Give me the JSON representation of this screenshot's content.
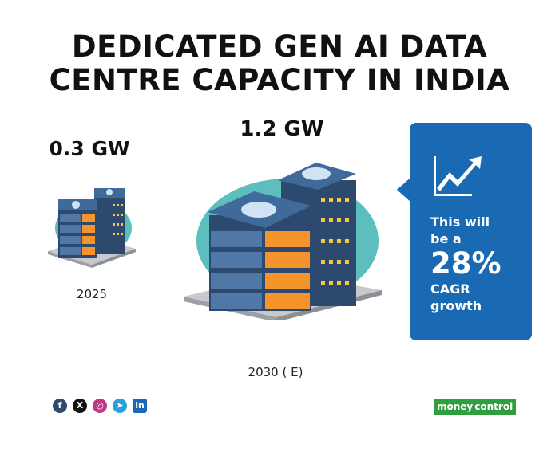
{
  "title": {
    "line1": "DEDICATED GEN AI DATA",
    "line2": "CENTRE CAPACITY IN INDIA"
  },
  "left": {
    "value": "0.3 GW",
    "year": "2025",
    "icon": "server-rack-icon"
  },
  "right": {
    "value": "1.2 GW",
    "year": "2030 ( E)",
    "icon": "server-rack-icon"
  },
  "callout": {
    "line1": "This will",
    "line2": "be a",
    "percent": "28%",
    "line3": "CAGR",
    "line4": "growth",
    "icon": "trending-up-icon",
    "color": "#1a6ab3"
  },
  "socials": [
    "facebook-icon",
    "x-icon",
    "instagram-icon",
    "telegram-icon",
    "linkedin-icon"
  ],
  "brand": {
    "part1": "money",
    "part2": "control"
  },
  "colors": {
    "teal": "#5cbfbd",
    "navy": "#2d4a6e",
    "orange": "#f5942a",
    "blue": "#1a6ab3"
  }
}
